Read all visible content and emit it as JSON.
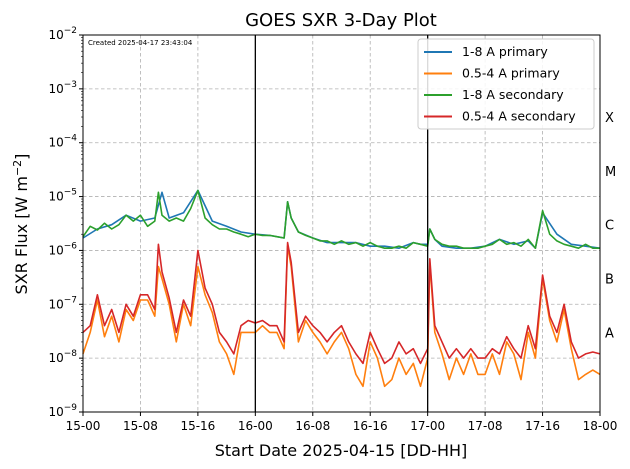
{
  "chart_data": {
    "type": "line",
    "title": "GOES SXR 3-Day Plot",
    "annotation": "Created 2025-04-17 23:43:04",
    "xlabel": "Start Date 2025-04-15 [DD-HH]",
    "ylabel_main": "SXR Flux [W m",
    "ylabel_sup": "−2",
    "ylabel_end": "]",
    "x_unit": "hours since 15-00",
    "xlim": [
      0,
      72
    ],
    "y_scale": "log",
    "ylim": [
      1e-09,
      0.01
    ],
    "x_ticks": [
      {
        "x": 0,
        "label": "15-00"
      },
      {
        "x": 8,
        "label": "15-08"
      },
      {
        "x": 16,
        "label": "15-16"
      },
      {
        "x": 24,
        "label": "16-00"
      },
      {
        "x": 32,
        "label": "16-08"
      },
      {
        "x": 40,
        "label": "16-16"
      },
      {
        "x": 48,
        "label": "17-00"
      },
      {
        "x": 56,
        "label": "17-08"
      },
      {
        "x": 64,
        "label": "17-16"
      },
      {
        "x": 72,
        "label": "18-00"
      }
    ],
    "y_ticks": [
      {
        "exp": -9,
        "base": "10",
        "sup": "−9"
      },
      {
        "exp": -8,
        "base": "10",
        "sup": "−8"
      },
      {
        "exp": -7,
        "base": "10",
        "sup": "−7"
      },
      {
        "exp": -6,
        "base": "10",
        "sup": "−6"
      },
      {
        "exp": -5,
        "base": "10",
        "sup": "−5"
      },
      {
        "exp": -4,
        "base": "10",
        "sup": "−4"
      },
      {
        "exp": -3,
        "base": "10",
        "sup": "−3"
      },
      {
        "exp": -2,
        "base": "10",
        "sup": "−2"
      }
    ],
    "day_lines": [
      24,
      48
    ],
    "grid": true,
    "legend_position": "upper-right",
    "flare_classes": [
      {
        "label": "A",
        "level": 3e-08
      },
      {
        "label": "B",
        "level": 3e-07
      },
      {
        "label": "C",
        "level": 3e-06
      },
      {
        "label": "M",
        "level": 3e-05
      },
      {
        "label": "X",
        "level": 0.0003
      }
    ],
    "series": [
      {
        "name": "1-8 A primary",
        "color": "#1f77b4",
        "x": [
          0,
          2,
          4,
          6,
          8,
          10,
          11,
          12,
          14,
          16,
          18,
          20,
          22,
          24,
          26,
          28,
          28.5,
          29,
          30,
          32,
          34,
          36,
          38,
          40,
          42,
          44,
          46,
          47,
          48,
          48.3,
          49,
          50,
          52,
          54,
          56,
          58,
          60,
          62,
          63,
          64,
          66,
          68,
          70,
          72
        ],
        "y": [
          1.7e-06,
          2.5e-06,
          3e-06,
          4.5e-06,
          3.5e-06,
          4e-06,
          1.2e-05,
          4e-06,
          5e-06,
          1.3e-05,
          3.5e-06,
          2.8e-06,
          2.2e-06,
          2e-06,
          1.9e-06,
          1.7e-06,
          8e-06,
          4e-06,
          2.2e-06,
          1.7e-06,
          1.4e-06,
          1.4e-06,
          1.4e-06,
          1.2e-06,
          1.2e-06,
          1.1e-06,
          1.4e-06,
          1.3e-06,
          1.3e-06,
          2.5e-06,
          1.6e-06,
          1.2e-06,
          1.1e-06,
          1.1e-06,
          1.2e-06,
          1.6e-06,
          1.3e-06,
          1.5e-06,
          1.1e-06,
          5e-06,
          2e-06,
          1.3e-06,
          1.2e-06,
          1.1e-06
        ]
      },
      {
        "name": "0.5-4 A primary",
        "color": "#ff7f0e",
        "x": [
          0,
          1,
          2,
          3,
          4,
          5,
          6,
          7,
          8,
          9,
          10,
          10.5,
          11,
          12,
          13,
          14,
          15,
          16,
          17,
          18,
          19,
          20,
          21,
          22,
          23,
          24,
          25,
          26,
          27,
          28,
          28.5,
          29,
          30,
          31,
          32,
          33,
          34,
          35,
          36,
          37,
          38,
          39,
          40,
          41,
          42,
          43,
          44,
          45,
          46,
          47,
          48,
          48.3,
          49,
          50,
          51,
          52,
          53,
          54,
          55,
          56,
          57,
          58,
          59,
          60,
          61,
          62,
          63,
          64,
          65,
          66,
          67,
          68,
          69,
          70,
          71,
          72
        ],
        "y": [
          1.2e-08,
          3e-08,
          1.2e-07,
          2.5e-08,
          6e-08,
          2e-08,
          8e-08,
          5e-08,
          1.2e-07,
          1.2e-07,
          6e-08,
          5e-07,
          3e-07,
          1e-07,
          2e-08,
          1e-07,
          4e-08,
          5e-07,
          1.5e-07,
          7e-08,
          2e-08,
          1.2e-08,
          5e-09,
          3e-08,
          3e-08,
          3e-08,
          4e-08,
          3e-08,
          3e-08,
          1.5e-08,
          1.2e-06,
          5e-07,
          2e-08,
          5e-08,
          3e-08,
          2e-08,
          1.2e-08,
          2e-08,
          3e-08,
          1.5e-08,
          5e-09,
          3e-09,
          2e-08,
          1e-08,
          3e-09,
          4e-09,
          1e-08,
          5e-09,
          8e-09,
          3e-09,
          1e-08,
          6e-07,
          3e-08,
          1.2e-08,
          4e-09,
          1e-08,
          5e-09,
          1.2e-08,
          5e-09,
          5e-09,
          1.2e-08,
          5e-09,
          2e-08,
          1.2e-08,
          4e-09,
          3e-08,
          1e-08,
          3e-07,
          5e-08,
          2e-08,
          8e-08,
          1.5e-08,
          4e-09,
          5e-09,
          6e-09,
          5e-09
        ]
      },
      {
        "name": "1-8 A secondary",
        "color": "#2ca02c",
        "x": [
          0,
          1,
          2,
          3,
          4,
          5,
          6,
          7,
          8,
          9,
          10,
          10.5,
          11,
          12,
          13,
          14,
          15,
          16,
          17,
          18,
          19,
          20,
          21,
          22,
          23,
          24,
          25,
          26,
          27,
          28,
          28.5,
          29,
          30,
          31,
          32,
          33,
          34,
          35,
          36,
          37,
          38,
          39,
          40,
          41,
          42,
          43,
          44,
          45,
          46,
          47,
          48,
          48.3,
          49,
          50,
          51,
          52,
          53,
          54,
          55,
          56,
          57,
          58,
          59,
          60,
          61,
          62,
          63,
          64,
          65,
          66,
          67,
          68,
          69,
          70,
          71,
          72
        ],
        "y": [
          1.8e-06,
          2.8e-06,
          2.4e-06,
          3.2e-06,
          2.5e-06,
          3e-06,
          4.5e-06,
          3.5e-06,
          4.5e-06,
          2.8e-06,
          3.5e-06,
          1.2e-05,
          4.5e-06,
          3.5e-06,
          4e-06,
          3.5e-06,
          6e-06,
          1.3e-05,
          4e-06,
          3e-06,
          2.5e-06,
          2.5e-06,
          2.2e-06,
          2e-06,
          1.8e-06,
          2e-06,
          1.9e-06,
          1.9e-06,
          1.8e-06,
          1.7e-06,
          8e-06,
          4e-06,
          2.2e-06,
          1.9e-06,
          1.7e-06,
          1.5e-06,
          1.5e-06,
          1.3e-06,
          1.5e-06,
          1.3e-06,
          1.4e-06,
          1.2e-06,
          1.4e-06,
          1.2e-06,
          1.1e-06,
          1.1e-06,
          1.2e-06,
          1.1e-06,
          1.4e-06,
          1.3e-06,
          1.2e-06,
          2.5e-06,
          1.6e-06,
          1.3e-06,
          1.2e-06,
          1.2e-06,
          1.1e-06,
          1.1e-06,
          1.1e-06,
          1.2e-06,
          1.3e-06,
          1.6e-06,
          1.3e-06,
          1.4e-06,
          1.2e-06,
          1.6e-06,
          1.1e-06,
          5.5e-06,
          2e-06,
          1.5e-06,
          1.3e-06,
          1.2e-06,
          1.1e-06,
          1.3e-06,
          1.1e-06,
          1.1e-06
        ]
      },
      {
        "name": "0.5-4 A secondary",
        "color": "#d62728",
        "x": [
          0,
          1,
          2,
          3,
          4,
          5,
          6,
          7,
          8,
          9,
          10,
          10.5,
          11,
          12,
          13,
          14,
          15,
          16,
          17,
          18,
          19,
          20,
          21,
          22,
          23,
          24,
          25,
          26,
          27,
          28,
          28.5,
          29,
          30,
          31,
          32,
          33,
          34,
          35,
          36,
          37,
          38,
          39,
          40,
          41,
          42,
          43,
          44,
          45,
          46,
          47,
          48,
          48.3,
          49,
          50,
          51,
          52,
          53,
          54,
          55,
          56,
          57,
          58,
          59,
          60,
          61,
          62,
          63,
          64,
          65,
          66,
          67,
          68,
          69,
          70,
          71,
          72
        ],
        "y": [
          3e-08,
          4e-08,
          1.5e-07,
          4e-08,
          8e-08,
          3e-08,
          1e-07,
          6e-08,
          1.5e-07,
          1.5e-07,
          8e-08,
          1.3e-06,
          4e-07,
          1.3e-07,
          3e-08,
          1.2e-07,
          6e-08,
          1e-06,
          2e-07,
          1e-07,
          3e-08,
          2e-08,
          1.2e-08,
          4e-08,
          5e-08,
          4.5e-08,
          5e-08,
          4e-08,
          4e-08,
          2e-08,
          1.4e-06,
          6e-07,
          3e-08,
          6e-08,
          4e-08,
          3e-08,
          2e-08,
          3e-08,
          4e-08,
          2e-08,
          1.2e-08,
          8e-09,
          3e-08,
          1.5e-08,
          8e-09,
          1e-08,
          2e-08,
          1.2e-08,
          1.5e-08,
          8e-09,
          1.5e-08,
          7e-07,
          4e-08,
          2e-08,
          1e-08,
          1.5e-08,
          1e-08,
          1.5e-08,
          1e-08,
          1e-08,
          1.5e-08,
          1.2e-08,
          2.5e-08,
          1.5e-08,
          1e-08,
          4e-08,
          1.5e-08,
          3.5e-07,
          6e-08,
          3e-08,
          1e-07,
          2e-08,
          1e-08,
          1.2e-08,
          1.3e-08,
          1.2e-08
        ]
      }
    ]
  }
}
